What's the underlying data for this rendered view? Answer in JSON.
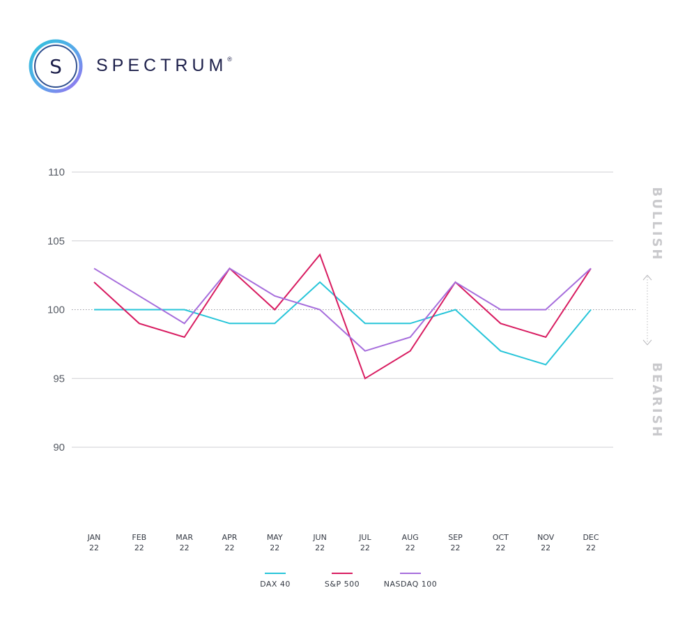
{
  "brand": {
    "name": "SPECTRUM",
    "registered": "®",
    "mark_letter": "S",
    "colors": {
      "text": "#1c1f4a",
      "ring_a": "#2ec4dc",
      "ring_b": "#9b6ff0"
    }
  },
  "chart_data": {
    "type": "line",
    "categories": [
      [
        "JAN",
        "22"
      ],
      [
        "FEB",
        "22"
      ],
      [
        "MAR",
        "22"
      ],
      [
        "APR",
        "22"
      ],
      [
        "MAY",
        "22"
      ],
      [
        "JUN",
        "22"
      ],
      [
        "JUL",
        "22"
      ],
      [
        "AUG",
        "22"
      ],
      [
        "SEP",
        "22"
      ],
      [
        "OCT",
        "22"
      ],
      [
        "NOV",
        "22"
      ],
      [
        "DEC",
        "22"
      ]
    ],
    "series": [
      {
        "name": "DAX 40",
        "color": "#27c5d9",
        "values": [
          100,
          100,
          100,
          99,
          99,
          102,
          99,
          99,
          100,
          97,
          96,
          100
        ]
      },
      {
        "name": "S&P 500",
        "color": "#d81b60",
        "values": [
          102,
          99,
          98,
          103,
          100,
          104,
          95,
          97,
          102,
          99,
          98,
          103
        ]
      },
      {
        "name": "NASDAQ 100",
        "color": "#a66ddc",
        "values": [
          103,
          101,
          99,
          103,
          101,
          100,
          97,
          98,
          102,
          100,
          100,
          103
        ]
      }
    ],
    "yticks": [
      110,
      105,
      100,
      95,
      90
    ],
    "ylim": [
      90,
      110
    ],
    "reference_line": 100,
    "grid": true,
    "legend_position": "bottom",
    "side_labels": {
      "top": "BULLISH",
      "bottom": "BEARISH"
    },
    "colors": {
      "grid": "#cfcfd3",
      "reference": "#9a9aa0"
    }
  }
}
